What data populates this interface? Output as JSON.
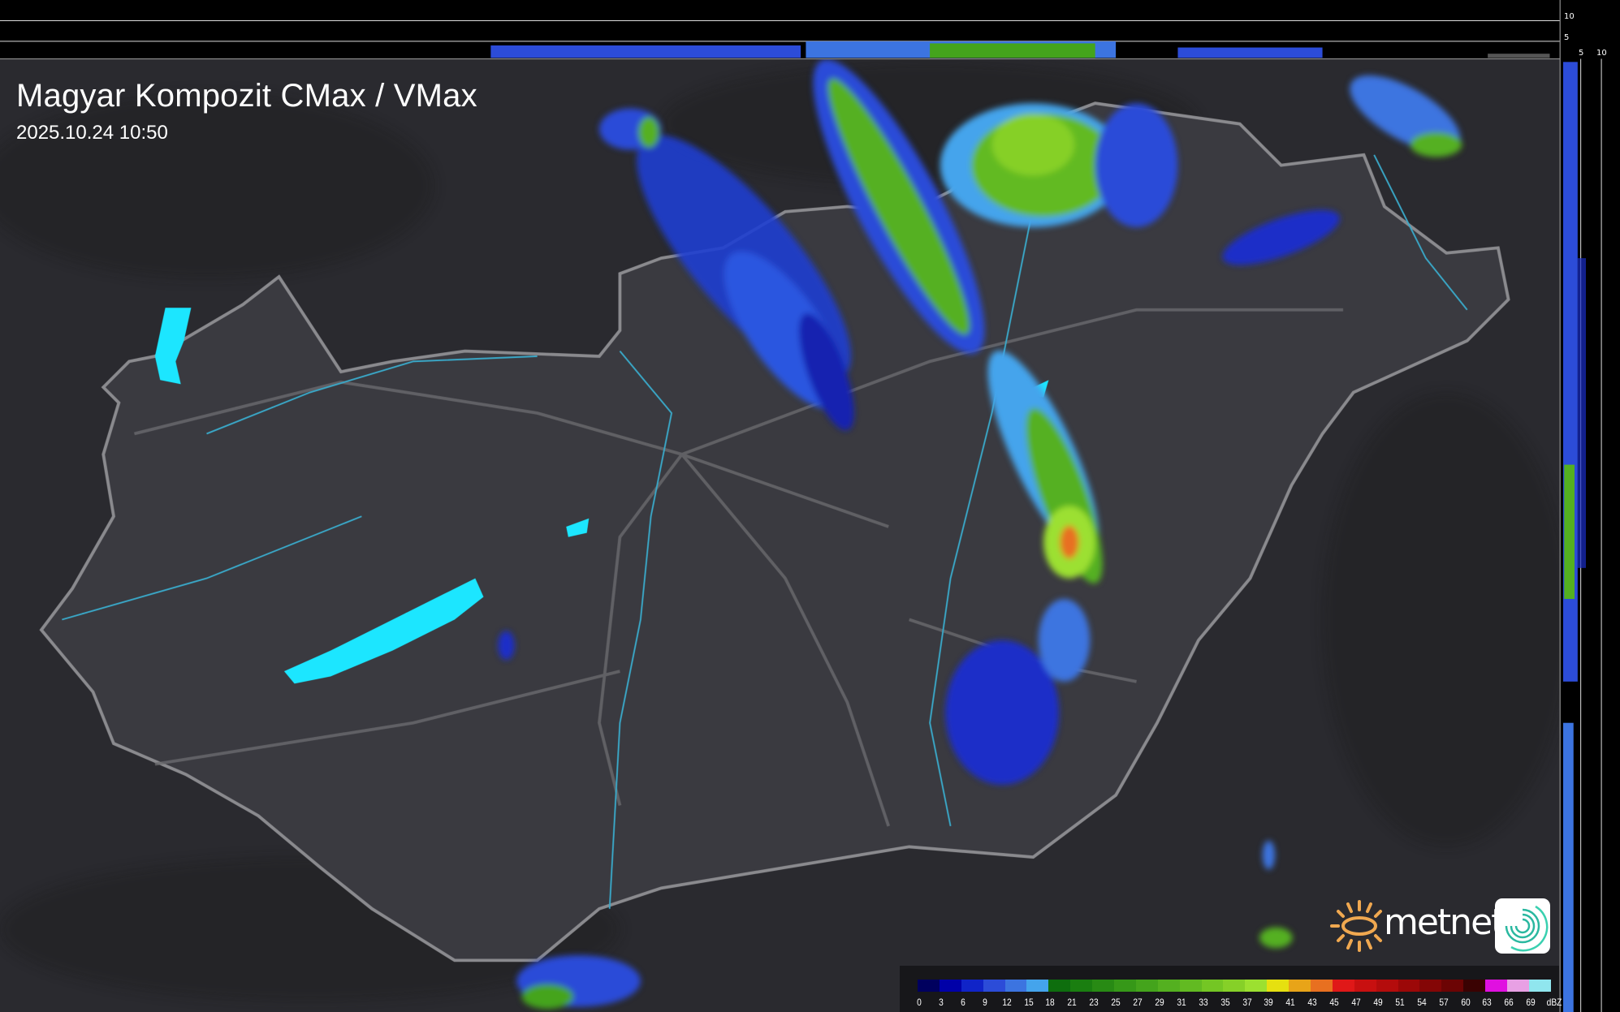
{
  "header": {
    "title": "Magyar Kompozit CMax / VMax",
    "timestamp": "2025.10.24 10:50"
  },
  "profile_axes": {
    "top_ticks": [
      "10",
      "5"
    ],
    "right_ticks": [
      "5",
      "10"
    ]
  },
  "legend": {
    "unit": "dBZ",
    "labels": [
      "0",
      "3",
      "6",
      "9",
      "12",
      "15",
      "18",
      "21",
      "23",
      "25",
      "27",
      "29",
      "31",
      "33",
      "35",
      "37",
      "39",
      "41",
      "43",
      "45",
      "47",
      "49",
      "51",
      "54",
      "57",
      "60",
      "63",
      "66",
      "69"
    ],
    "colors": [
      "#00005e",
      "#0000a8",
      "#1024c8",
      "#2c4cd8",
      "#3c74e0",
      "#44a4ec",
      "#0e6e0e",
      "#1a7e10",
      "#288a14",
      "#369818",
      "#44a41c",
      "#54b020",
      "#62ba22",
      "#74c624",
      "#86d028",
      "#9ce030",
      "#e6e010",
      "#e8a418",
      "#e87020",
      "#e01818",
      "#c81010",
      "#b40c0c",
      "#9c0808",
      "#840606",
      "#6c0404",
      "#3a0202",
      "#e010e0",
      "#e8a0e4",
      "#90e6ee"
    ]
  },
  "branding": {
    "logo_text": "metnet",
    "accent": "#f0a850"
  },
  "colors": {
    "lakes": "#1ce6ff",
    "border": "#8a8a8e",
    "rivers": "#3aa8c8"
  }
}
